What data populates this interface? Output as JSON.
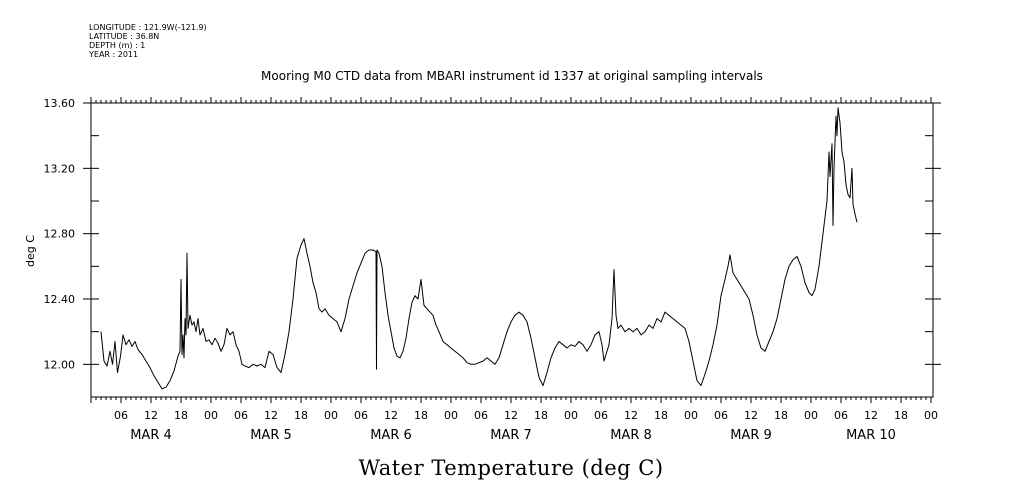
{
  "meta": [
    "LONGITUDE : 121.9W(-121.9)",
    "LATITUDE : 36.8N",
    "DEPTH (m) : 1",
    "YEAR : 2011"
  ],
  "chart_data": {
    "type": "line",
    "title": "Mooring M0 CTD data from MBARI instrument id 1337 at original sampling intervals",
    "xlabel": "Water Temperature (deg C)",
    "ylabel": "deg C",
    "ylim": [
      11.8,
      13.6
    ],
    "y_ticks": [
      "12.00",
      "12.40",
      "12.80",
      "13.20",
      "13.60"
    ],
    "x_hour_ticks": [
      "06",
      "12",
      "18",
      "00",
      "06",
      "12",
      "18",
      "00",
      "06",
      "12",
      "18",
      "00",
      "06",
      "12",
      "18",
      "00",
      "06",
      "12",
      "18",
      "00",
      "06",
      "12",
      "18",
      "00",
      "06",
      "12",
      "18",
      "00"
    ],
    "day_labels": [
      "MAR 4",
      "MAR 5",
      "MAR 6",
      "MAR 7",
      "MAR 8",
      "MAR 9",
      "MAR 10"
    ],
    "grid": false,
    "series": [
      {
        "values": [
          [
            2.0,
            12.2
          ],
          [
            2.6,
            12.02
          ],
          [
            3.2,
            11.99
          ],
          [
            3.8,
            12.08
          ],
          [
            4.3,
            12.0
          ],
          [
            4.8,
            12.14
          ],
          [
            5.3,
            11.95
          ],
          [
            5.9,
            12.05
          ],
          [
            6.4,
            12.18
          ],
          [
            7.0,
            12.12
          ],
          [
            7.6,
            12.15
          ],
          [
            8.2,
            12.11
          ],
          [
            8.8,
            12.14
          ],
          [
            9.4,
            12.09
          ],
          [
            10.2,
            12.06
          ],
          [
            11.0,
            12.02
          ],
          [
            11.8,
            11.98
          ],
          [
            12.6,
            11.93
          ],
          [
            13.4,
            11.89
          ],
          [
            14.2,
            11.85
          ],
          [
            15.0,
            11.86
          ],
          [
            15.8,
            11.9
          ],
          [
            16.6,
            11.96
          ],
          [
            17.4,
            12.05
          ],
          [
            17.8,
            12.08
          ],
          [
            18.0,
            12.52
          ],
          [
            18.2,
            12.06
          ],
          [
            18.4,
            12.18
          ],
          [
            18.6,
            12.04
          ],
          [
            18.8,
            12.28
          ],
          [
            19.0,
            12.18
          ],
          [
            19.2,
            12.68
          ],
          [
            19.4,
            12.22
          ],
          [
            19.8,
            12.3
          ],
          [
            20.2,
            12.24
          ],
          [
            20.6,
            12.26
          ],
          [
            21.0,
            12.2
          ],
          [
            21.4,
            12.28
          ],
          [
            21.8,
            12.18
          ],
          [
            22.4,
            12.22
          ],
          [
            23.0,
            12.14
          ],
          [
            23.6,
            12.15
          ],
          [
            24.2,
            12.12
          ],
          [
            24.8,
            12.16
          ],
          [
            25.4,
            12.13
          ],
          [
            26.0,
            12.08
          ],
          [
            26.6,
            12.12
          ],
          [
            27.2,
            12.22
          ],
          [
            27.8,
            12.18
          ],
          [
            28.4,
            12.2
          ],
          [
            29.0,
            12.12
          ],
          [
            29.6,
            12.08
          ],
          [
            30.2,
            12.0
          ],
          [
            30.8,
            11.99
          ],
          [
            31.6,
            11.98
          ],
          [
            32.4,
            12.0
          ],
          [
            33.2,
            11.99
          ],
          [
            34.0,
            12.0
          ],
          [
            34.8,
            11.98
          ],
          [
            35.6,
            12.08
          ],
          [
            36.4,
            12.06
          ],
          [
            37.2,
            11.98
          ],
          [
            38.0,
            11.95
          ],
          [
            38.8,
            12.06
          ],
          [
            39.6,
            12.2
          ],
          [
            40.4,
            12.4
          ],
          [
            41.2,
            12.65
          ],
          [
            42.0,
            12.73
          ],
          [
            42.6,
            12.77
          ],
          [
            43.2,
            12.68
          ],
          [
            43.8,
            12.6
          ],
          [
            44.4,
            12.5
          ],
          [
            45.0,
            12.44
          ],
          [
            45.6,
            12.34
          ],
          [
            46.2,
            12.32
          ],
          [
            46.8,
            12.34
          ],
          [
            47.6,
            12.3
          ],
          [
            48.4,
            12.28
          ],
          [
            49.2,
            12.26
          ],
          [
            50.0,
            12.2
          ],
          [
            50.8,
            12.28
          ],
          [
            51.6,
            12.4
          ],
          [
            52.4,
            12.48
          ],
          [
            53.2,
            12.56
          ],
          [
            54.0,
            12.62
          ],
          [
            54.8,
            12.68
          ],
          [
            55.6,
            12.7
          ],
          [
            56.4,
            12.7
          ],
          [
            57.0,
            12.69
          ],
          [
            57.1,
            11.97
          ],
          [
            57.2,
            12.7
          ],
          [
            57.6,
            12.68
          ],
          [
            58.2,
            12.6
          ],
          [
            58.8,
            12.44
          ],
          [
            59.4,
            12.3
          ],
          [
            60.0,
            12.2
          ],
          [
            60.6,
            12.1
          ],
          [
            61.2,
            12.05
          ],
          [
            61.8,
            12.04
          ],
          [
            62.4,
            12.08
          ],
          [
            63.0,
            12.16
          ],
          [
            63.6,
            12.28
          ],
          [
            64.2,
            12.38
          ],
          [
            64.8,
            12.42
          ],
          [
            65.4,
            12.4
          ],
          [
            66.0,
            12.52
          ],
          [
            66.6,
            12.36
          ],
          [
            67.2,
            12.34
          ],
          [
            67.8,
            12.32
          ],
          [
            68.4,
            12.3
          ],
          [
            69.0,
            12.24
          ],
          [
            69.6,
            12.2
          ],
          [
            70.4,
            12.14
          ],
          [
            71.2,
            12.12
          ],
          [
            72.0,
            12.1
          ],
          [
            72.8,
            12.08
          ],
          [
            73.6,
            12.06
          ],
          [
            74.4,
            12.04
          ],
          [
            75.2,
            12.01
          ],
          [
            76.0,
            12.0
          ],
          [
            76.8,
            12.0
          ],
          [
            77.6,
            12.01
          ],
          [
            78.4,
            12.02
          ],
          [
            79.2,
            12.04
          ],
          [
            80.0,
            12.02
          ],
          [
            80.8,
            12.0
          ],
          [
            81.6,
            12.04
          ],
          [
            82.4,
            12.12
          ],
          [
            83.2,
            12.2
          ],
          [
            84.0,
            12.26
          ],
          [
            84.8,
            12.3
          ],
          [
            85.6,
            12.32
          ],
          [
            86.4,
            12.3
          ],
          [
            87.2,
            12.26
          ],
          [
            88.0,
            12.16
          ],
          [
            88.8,
            12.04
          ],
          [
            89.6,
            11.92
          ],
          [
            90.4,
            11.87
          ],
          [
            91.2,
            11.95
          ],
          [
            92.0,
            12.04
          ],
          [
            92.8,
            12.1
          ],
          [
            93.6,
            12.14
          ],
          [
            94.4,
            12.12
          ],
          [
            95.2,
            12.1
          ],
          [
            96.0,
            12.12
          ],
          [
            96.8,
            12.11
          ],
          [
            97.6,
            12.14
          ],
          [
            98.4,
            12.12
          ],
          [
            99.2,
            12.08
          ],
          [
            100.0,
            12.12
          ],
          [
            100.8,
            12.18
          ],
          [
            101.6,
            12.2
          ],
          [
            102.2,
            12.12
          ],
          [
            102.6,
            12.02
          ],
          [
            103.0,
            12.06
          ],
          [
            103.6,
            12.12
          ],
          [
            104.2,
            12.28
          ],
          [
            104.6,
            12.58
          ],
          [
            105.0,
            12.3
          ],
          [
            105.4,
            12.22
          ],
          [
            106.0,
            12.24
          ],
          [
            106.8,
            12.2
          ],
          [
            107.6,
            12.22
          ],
          [
            108.4,
            12.2
          ],
          [
            109.2,
            12.22
          ],
          [
            110.0,
            12.18
          ],
          [
            110.8,
            12.2
          ],
          [
            111.6,
            12.24
          ],
          [
            112.4,
            12.22
          ],
          [
            113.2,
            12.28
          ],
          [
            114.0,
            12.26
          ],
          [
            114.8,
            12.32
          ],
          [
            115.6,
            12.3
          ],
          [
            116.4,
            12.28
          ],
          [
            117.2,
            12.26
          ],
          [
            118.0,
            12.24
          ],
          [
            118.8,
            12.22
          ],
          [
            119.6,
            12.14
          ],
          [
            120.4,
            12.02
          ],
          [
            121.2,
            11.9
          ],
          [
            122.0,
            11.87
          ],
          [
            122.8,
            11.94
          ],
          [
            123.6,
            12.02
          ],
          [
            124.4,
            12.12
          ],
          [
            125.2,
            12.24
          ],
          [
            126.0,
            12.42
          ],
          [
            126.8,
            12.52
          ],
          [
            127.4,
            12.6
          ],
          [
            127.8,
            12.67
          ],
          [
            128.4,
            12.56
          ],
          [
            129.2,
            12.52
          ],
          [
            130.0,
            12.48
          ],
          [
            130.8,
            12.44
          ],
          [
            131.6,
            12.4
          ],
          [
            132.4,
            12.3
          ],
          [
            133.2,
            12.18
          ],
          [
            134.0,
            12.1
          ],
          [
            134.8,
            12.08
          ],
          [
            135.6,
            12.14
          ],
          [
            136.4,
            12.2
          ],
          [
            137.2,
            12.28
          ],
          [
            138.0,
            12.4
          ],
          [
            138.8,
            12.52
          ],
          [
            139.6,
            12.6
          ],
          [
            140.4,
            12.64
          ],
          [
            141.2,
            12.66
          ],
          [
            142.0,
            12.6
          ],
          [
            142.8,
            12.5
          ],
          [
            143.6,
            12.44
          ],
          [
            144.2,
            12.42
          ],
          [
            144.8,
            12.46
          ],
          [
            145.6,
            12.6
          ],
          [
            146.4,
            12.8
          ],
          [
            147.2,
            13.0
          ],
          [
            147.6,
            13.3
          ],
          [
            147.8,
            13.15
          ],
          [
            148.2,
            13.35
          ],
          [
            148.4,
            12.85
          ],
          [
            148.6,
            13.2
          ],
          [
            149.0,
            13.52
          ],
          [
            149.2,
            13.4
          ],
          [
            149.4,
            13.57
          ],
          [
            149.8,
            13.48
          ],
          [
            150.2,
            13.3
          ],
          [
            150.6,
            13.24
          ],
          [
            151.0,
            13.1
          ],
          [
            151.4,
            13.04
          ],
          [
            151.8,
            13.02
          ],
          [
            152.2,
            13.2
          ],
          [
            152.4,
            12.98
          ],
          [
            152.8,
            12.92
          ],
          [
            153.2,
            12.87
          ]
        ]
      }
    ]
  }
}
